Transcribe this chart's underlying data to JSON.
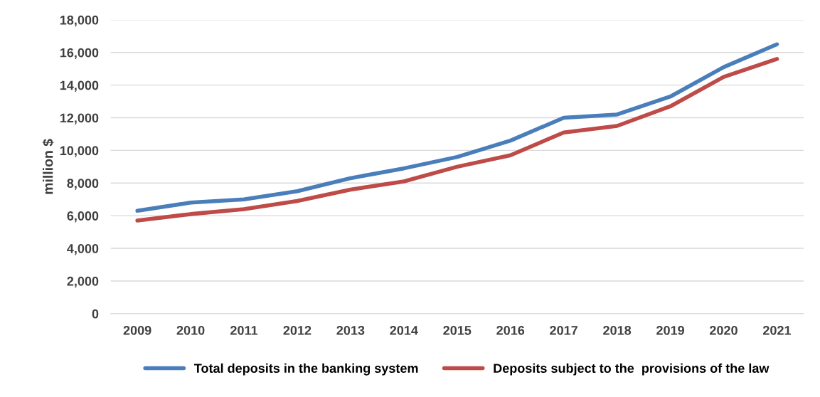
{
  "chart_data": {
    "type": "line",
    "ylabel": "million $",
    "categories": [
      "2009",
      "2010",
      "2011",
      "2012",
      "2013",
      "2014",
      "2015",
      "2016",
      "2017",
      "2018",
      "2019",
      "2020",
      "2021"
    ],
    "series": [
      {
        "name": "Total deposits in the banking system",
        "color": "#4a7ebb",
        "values": [
          6300,
          6800,
          7000,
          7500,
          8300,
          8900,
          9600,
          10600,
          12000,
          12200,
          13300,
          15100,
          16500
        ]
      },
      {
        "name": "Deposits subject to the  provisions of the law",
        "color": "#be4b48",
        "values": [
          5700,
          6100,
          6400,
          6900,
          7600,
          8100,
          9000,
          9700,
          11100,
          11500,
          12700,
          14500,
          15600
        ]
      }
    ],
    "ylim": [
      0,
      18000
    ],
    "yticks": [
      {
        "value": 0,
        "label": "0"
      },
      {
        "value": 2000,
        "label": "2,000"
      },
      {
        "value": 4000,
        "label": "4,000"
      },
      {
        "value": 6000,
        "label": "6,000"
      },
      {
        "value": 8000,
        "label": "8,000"
      },
      {
        "value": 10000,
        "label": "10,000"
      },
      {
        "value": 12000,
        "label": "12,000"
      },
      {
        "value": 14000,
        "label": "14,000"
      },
      {
        "value": 16000,
        "label": "16,000"
      },
      {
        "value": 18000,
        "label": "18,000"
      }
    ],
    "grid": "y",
    "legend": "bottom",
    "marker": "none",
    "line_style": "solid"
  }
}
